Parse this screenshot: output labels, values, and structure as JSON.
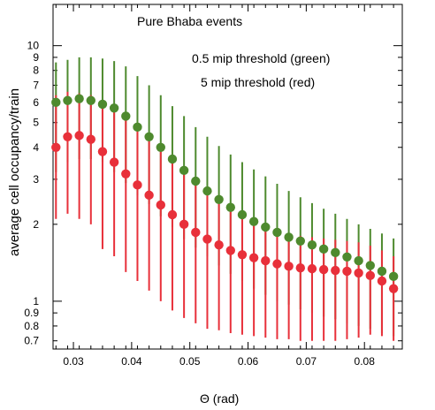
{
  "chart_data": {
    "type": "scatter",
    "annotations": [
      "Pure Bhaba events",
      "0.5 mip threshold (green)",
      "5 mip threshold (red)"
    ],
    "xlabel": "Θ  (rad)",
    "ylabel": "average cell occupancy/train",
    "xlim": [
      0.0265,
      0.0865
    ],
    "ylim": [
      0.65,
      14.5
    ],
    "yscale": "log",
    "grid": false,
    "legend": "none",
    "x_ticks": [
      "0.03",
      "0.04",
      "0.05",
      "0.06",
      "0.07",
      "0.08"
    ],
    "y_ticks": [
      "0.7",
      "0.8",
      "0.9",
      "1",
      "2",
      "3",
      "4",
      "5",
      "6",
      "7",
      "8",
      "9",
      "10"
    ],
    "x": [
      0.027,
      0.029,
      0.031,
      0.033,
      0.035,
      0.037,
      0.039,
      0.041,
      0.043,
      0.045,
      0.047,
      0.049,
      0.051,
      0.053,
      0.055,
      0.057,
      0.059,
      0.061,
      0.063,
      0.065,
      0.067,
      0.069,
      0.071,
      0.073,
      0.075,
      0.077,
      0.079,
      0.081,
      0.083,
      0.085
    ],
    "series": [
      {
        "color": "#4e8a2e",
        "values": [
          6.0,
          6.1,
          6.2,
          6.1,
          5.9,
          5.7,
          5.3,
          4.8,
          4.4,
          4.0,
          3.6,
          3.25,
          2.95,
          2.7,
          2.5,
          2.33,
          2.18,
          2.05,
          1.95,
          1.86,
          1.78,
          1.72,
          1.66,
          1.6,
          1.55,
          1.49,
          1.44,
          1.38,
          1.31,
          1.25
        ],
        "err_low": [
          3.2,
          3.5,
          3.6,
          3.6,
          3.5,
          3.2,
          2.9,
          2.6,
          2.4,
          2.15,
          1.95,
          1.75,
          1.62,
          1.5,
          1.38,
          1.28,
          1.2,
          1.12,
          1.06,
          1.0,
          0.97,
          0.93,
          0.9,
          0.87,
          0.85,
          0.82,
          0.8,
          0.78,
          0.75,
          0.73
        ],
        "err_high": [
          8.6,
          8.8,
          9.0,
          9.0,
          8.9,
          8.7,
          8.3,
          7.6,
          7.0,
          6.4,
          5.8,
          5.3,
          4.8,
          4.4,
          4.05,
          3.75,
          3.5,
          3.28,
          3.08,
          2.88,
          2.7,
          2.55,
          2.42,
          2.3,
          2.2,
          2.1,
          2.0,
          1.92,
          1.84,
          1.76
        ]
      },
      {
        "color": "#e8303a",
        "values": [
          4.0,
          4.4,
          4.45,
          4.3,
          3.85,
          3.5,
          3.15,
          2.85,
          2.6,
          2.38,
          2.18,
          2.0,
          1.86,
          1.75,
          1.66,
          1.58,
          1.52,
          1.48,
          1.44,
          1.4,
          1.37,
          1.35,
          1.34,
          1.33,
          1.32,
          1.31,
          1.29,
          1.26,
          1.2,
          1.12
        ],
        "err_low": [
          2.1,
          2.2,
          2.1,
          2.0,
          1.6,
          1.5,
          1.3,
          1.2,
          1.1,
          1.0,
          0.92,
          0.86,
          0.82,
          0.78,
          0.77,
          0.75,
          0.74,
          0.73,
          0.72,
          0.71,
          0.71,
          0.7,
          0.7,
          0.7,
          0.7,
          0.71,
          0.72,
          0.74,
          0.73,
          0.7
        ],
        "err_high": [
          6.4,
          6.6,
          6.5,
          6.4,
          6.1,
          5.8,
          5.3,
          4.8,
          4.4,
          4.0,
          3.6,
          3.3,
          3.0,
          2.75,
          2.5,
          2.3,
          2.15,
          2.0,
          1.9,
          1.85,
          1.82,
          1.8,
          1.78,
          1.76,
          1.74,
          1.72,
          1.7,
          1.65,
          1.58,
          1.5
        ]
      }
    ]
  }
}
